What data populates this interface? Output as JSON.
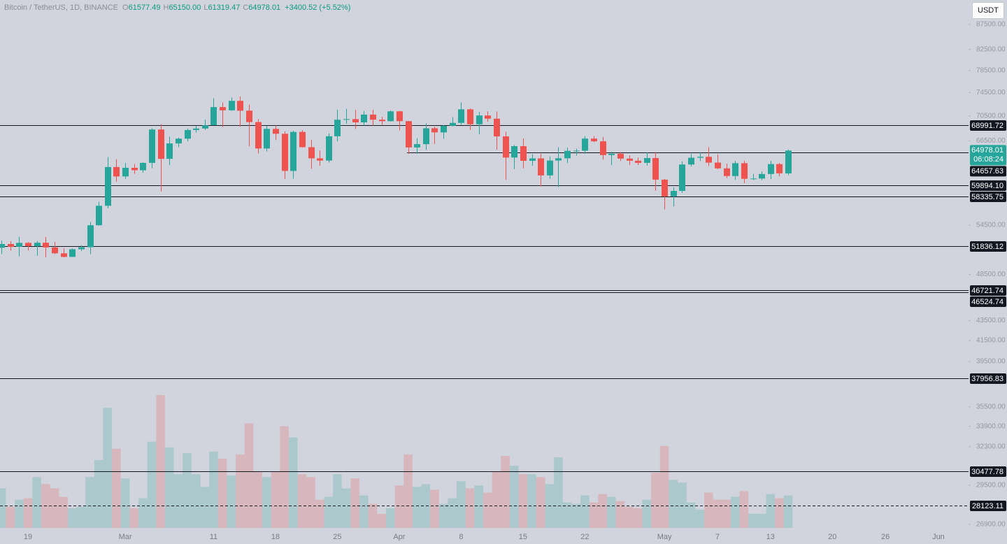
{
  "header": {
    "title": "Bitcoin / TetherUS, 1D, BINANCE",
    "ohlc": [
      {
        "key": "O",
        "value": "61577.49"
      },
      {
        "key": "H",
        "value": "65150.00"
      },
      {
        "key": "L",
        "value": "61319.47"
      },
      {
        "key": "C",
        "value": "64978.01"
      }
    ],
    "change": "+3400.52 (+5.52%)"
  },
  "currency": "USDT",
  "chart_data": {
    "type": "candlestick",
    "log_scale": true,
    "up_color": "#26a69a",
    "down_color": "#ef5350",
    "categories": [
      null,
      null,
      null,
      "19",
      null,
      null,
      null,
      null,
      null,
      null,
      null,
      null,
      null,
      null,
      "Mar",
      null,
      null,
      null,
      null,
      null,
      null,
      null,
      null,
      null,
      "11",
      null,
      null,
      null,
      null,
      null,
      null,
      "18",
      null,
      null,
      null,
      null,
      null,
      null,
      "25",
      null,
      null,
      null,
      null,
      null,
      null,
      "Apr",
      null,
      null,
      null,
      null,
      null,
      null,
      "8",
      null,
      null,
      null,
      null,
      null,
      null,
      "15",
      null,
      null,
      null,
      null,
      null,
      null,
      "22",
      null,
      null,
      null,
      null,
      null,
      null,
      null,
      null,
      "May",
      null,
      null,
      null,
      null,
      null,
      "7",
      null,
      null,
      null,
      null,
      null,
      "13",
      null,
      null,
      null,
      null,
      null,
      null,
      "20",
      null,
      null,
      null,
      null,
      null,
      "26",
      null,
      null,
      null,
      null,
      null,
      "Jun",
      null,
      null
    ],
    "open": [
      51660,
      52120,
      51780,
      52260,
      51850,
      52280,
      51700,
      50990,
      50560,
      51480,
      51730,
      54480,
      57040,
      62500,
      61130,
      62390,
      62030,
      63120,
      68290,
      63720,
      66080,
      66830,
      68210,
      68450,
      68980,
      72000,
      71450,
      73070,
      71390,
      69500,
      65300,
      68390,
      67610,
      61930,
      67900,
      65500,
      63800,
      63460,
      67210,
      69880,
      69990,
      69450,
      70740,
      69890,
      69650,
      71280,
      69650,
      65460,
      65970,
      68490,
      67830,
      68900,
      69360,
      71620,
      69140,
      70590,
      70060,
      67190,
      63920,
      65660,
      63430,
      63790,
      61280,
      63470,
      63810,
      64940,
      64960,
      66840,
      66410,
      64290,
      64500,
      63760,
      63440,
      63120,
      63840,
      60670,
      58320,
      59080,
      62880,
      63890,
      64030,
      63160,
      62310,
      61190,
      63070,
      60790,
      60830,
      61480,
      62940,
      61577.49,
      null,
      null,
      null,
      null,
      null,
      null,
      null,
      null,
      null,
      null,
      null,
      null,
      null,
      null,
      null,
      null,
      null,
      null,
      null
    ],
    "high": [
      52570,
      52470,
      52980,
      52380,
      52490,
      52980,
      52390,
      51600,
      51580,
      51950,
      54910,
      57590,
      64000,
      63680,
      63120,
      62950,
      63200,
      68510,
      69170,
      67150,
      67000,
      68450,
      68850,
      69890,
      73500,
      72800,
      73650,
      73800,
      72420,
      70000,
      68900,
      68950,
      68000,
      68100,
      68200,
      66650,
      65000,
      67650,
      71560,
      71700,
      71530,
      71350,
      71550,
      70350,
      71400,
      71350,
      69700,
      66900,
      69300,
      68720,
      69000,
      70300,
      72800,
      71760,
      71170,
      71280,
      71250,
      67930,
      65830,
      66870,
      64400,
      64500,
      64100,
      65490,
      65450,
      65250,
      67230,
      67250,
      67100,
      64800,
      64750,
      64250,
      63900,
      64700,
      64730,
      60780,
      59600,
      63320,
      64500,
      64740,
      65500,
      64400,
      63000,
      63440,
      63450,
      61500,
      61850,
      63450,
      63130,
      65150,
      null,
      null,
      null,
      null,
      null,
      null,
      null,
      null,
      null,
      null,
      null,
      null,
      null,
      null,
      null,
      null,
      null,
      null,
      null
    ],
    "low": [
      50900,
      51300,
      50620,
      51330,
      50700,
      50520,
      50900,
      50500,
      50550,
      51280,
      50900,
      54450,
      56690,
      60360,
      60780,
      61500,
      61670,
      62340,
      59000,
      62800,
      65500,
      66400,
      67800,
      68200,
      68980,
      68700,
      71350,
      68750,
      65630,
      64550,
      64850,
      66600,
      60780,
      60800,
      65450,
      62260,
      62700,
      63170,
      66400,
      69250,
      68380,
      68950,
      68930,
      69050,
      69570,
      68150,
      64500,
      64500,
      65080,
      66000,
      66800,
      68800,
      69040,
      68200,
      67500,
      69560,
      65100,
      60660,
      62200,
      62300,
      62700,
      59700,
      60800,
      59600,
      63100,
      64230,
      64500,
      66300,
      63600,
      62800,
      63400,
      62800,
      62800,
      62700,
      59100,
      56550,
      56950,
      58800,
      62600,
      63400,
      62650,
      62200,
      60890,
      60650,
      60180,
      60630,
      60600,
      60750,
      61150,
      61319.47,
      null,
      null,
      null,
      null,
      null,
      null,
      null,
      null,
      null,
      null,
      null,
      null,
      null,
      null,
      null,
      null,
      null,
      null,
      null
    ],
    "close": [
      52120,
      51780,
      52260,
      51850,
      52280,
      51700,
      50990,
      50560,
      51480,
      51730,
      54480,
      57040,
      62500,
      61130,
      62390,
      62030,
      63120,
      68290,
      63720,
      66080,
      66830,
      68210,
      68450,
      68980,
      72000,
      71450,
      73070,
      71390,
      69500,
      65300,
      68390,
      67610,
      61930,
      67900,
      65500,
      63800,
      63460,
      67210,
      69880,
      69990,
      69450,
      70740,
      69890,
      69650,
      71280,
      69650,
      65460,
      65970,
      68490,
      67830,
      68900,
      69360,
      71620,
      69140,
      70590,
      70060,
      67190,
      63920,
      65660,
      63430,
      63790,
      61280,
      63470,
      63810,
      64940,
      64960,
      66840,
      66410,
      64290,
      64500,
      63760,
      63440,
      63120,
      63840,
      60670,
      58320,
      59080,
      62880,
      63890,
      64030,
      63160,
      62310,
      61190,
      63070,
      60790,
      60830,
      61480,
      62940,
      61580,
      64978.01,
      null,
      null,
      null,
      null,
      null,
      null,
      null,
      null,
      null,
      null,
      null,
      null,
      null,
      null,
      null,
      null,
      null,
      null,
      null
    ],
    "volume": [
      28,
      15,
      20,
      21,
      36,
      31,
      28,
      22,
      14,
      15,
      36,
      48,
      85,
      56,
      35,
      14,
      21,
      61,
      94,
      57,
      38,
      53,
      38,
      29,
      54,
      49,
      37,
      52,
      74,
      40,
      36,
      40,
      72,
      64,
      38,
      36,
      20,
      22,
      38,
      28,
      35,
      23,
      17,
      10,
      14,
      30,
      52,
      29,
      31,
      27,
      17,
      21,
      33,
      28,
      30,
      25,
      40,
      51,
      44,
      38,
      38,
      36,
      31,
      50,
      18,
      17,
      23,
      18,
      24,
      22,
      19,
      15,
      14,
      20,
      39,
      58,
      34,
      32,
      18,
      13,
      25,
      20,
      20,
      22,
      26,
      10,
      10,
      24,
      21,
      23,
      null,
      null,
      null,
      null,
      null,
      null,
      null,
      null,
      null,
      null,
      null,
      null,
      null,
      null,
      null,
      null,
      null,
      null,
      null
    ],
    "ylim": [
      26540,
      92700
    ],
    "yticks": [
      {
        "value": 87500,
        "label": "87500.00"
      },
      {
        "value": 82500,
        "label": "82500.00"
      },
      {
        "value": 78500,
        "label": "78500.00"
      },
      {
        "value": 74500,
        "label": "74500.00"
      },
      {
        "value": 70500,
        "label": "70500.00"
      },
      {
        "value": 66500,
        "label": "66500.00"
      },
      {
        "value": 54500,
        "label": "54500.00"
      },
      {
        "value": 48500,
        "label": "48500.00"
      },
      {
        "value": 43500,
        "label": "43500.00"
      },
      {
        "value": 41500,
        "label": "41500.00"
      },
      {
        "value": 39500,
        "label": "39500.00"
      },
      {
        "value": 35500,
        "label": "35500.00"
      },
      {
        "value": 33900,
        "label": "33900.00"
      },
      {
        "value": 32300,
        "label": "32300.00"
      },
      {
        "value": 29500,
        "label": "29500.00"
      },
      {
        "value": 26900,
        "label": "26900.00"
      }
    ],
    "hlines": [
      68991.72,
      64657.63,
      {
        "value": 59894.1,
        "label": "59894.10"
      },
      58335.75,
      51836.12,
      46721.74,
      46524.74,
      37956.83,
      30477.78
    ],
    "dashed_hlines": [
      28123.11
    ],
    "last_price": 64978.01,
    "countdown": "06:08:24"
  }
}
